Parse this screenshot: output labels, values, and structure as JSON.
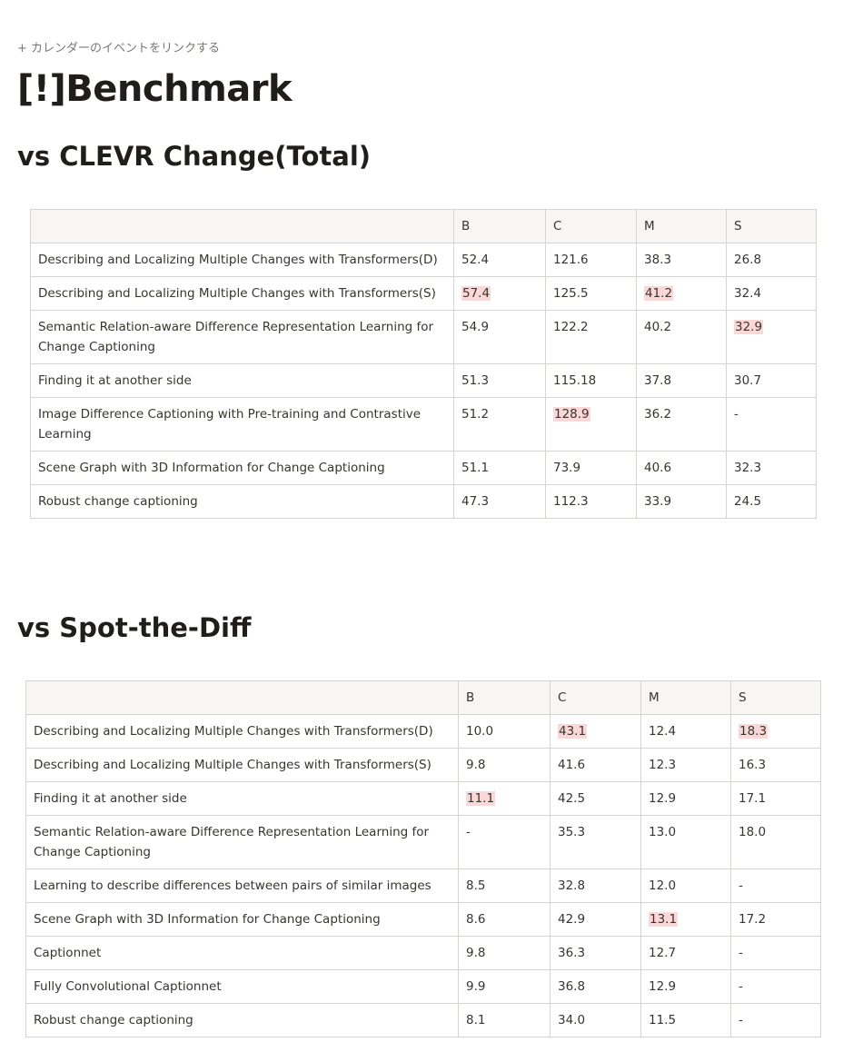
{
  "calendar_link": "+ カレンダーのイベントをリンクする",
  "page_title": "[!]Benchmark",
  "sections": [
    {
      "heading": "vs CLEVR Change(Total)",
      "columns": [
        "",
        "B",
        "C",
        "M",
        "S"
      ],
      "rows": [
        {
          "name": "Describing and Localizing Multiple Changes with Transformers(D)",
          "values": [
            "52.4",
            "121.6",
            "38.3",
            "26.8"
          ],
          "highlight": [
            false,
            false,
            false,
            false
          ]
        },
        {
          "name": "Describing and Localizing Multiple Changes with Transformers(S)",
          "values": [
            "57.4",
            "125.5",
            "41.2",
            "32.4"
          ],
          "highlight": [
            true,
            false,
            true,
            false
          ]
        },
        {
          "name": "Semantic Relation-aware Difference Representation Learning for Change Captioning",
          "values": [
            "54.9",
            "122.2",
            "40.2",
            "32.9"
          ],
          "highlight": [
            false,
            false,
            false,
            true
          ]
        },
        {
          "name": "Finding it at another side",
          "values": [
            "51.3",
            "115.18",
            "37.8",
            "30.7"
          ],
          "highlight": [
            false,
            false,
            false,
            false
          ]
        },
        {
          "name": "Image Difference Captioning with Pre-training and Contrastive Learning",
          "values": [
            "51.2",
            "128.9",
            "36.2",
            "-"
          ],
          "highlight": [
            false,
            true,
            false,
            false
          ]
        },
        {
          "name": "Scene Graph with 3D Information for Change Captioning",
          "values": [
            "51.1",
            "73.9",
            "40.6",
            "32.3"
          ],
          "highlight": [
            false,
            false,
            false,
            false
          ]
        },
        {
          "name": "Robust change captioning",
          "values": [
            "47.3",
            "112.3",
            "33.9",
            "24.5"
          ],
          "highlight": [
            false,
            false,
            false,
            false
          ]
        }
      ]
    },
    {
      "heading": "vs Spot-the-Diff",
      "columns": [
        "",
        "B",
        "C",
        "M",
        "S"
      ],
      "rows": [
        {
          "name": "Describing and Localizing Multiple Changes with Transformers(D)",
          "values": [
            "10.0",
            "43.1",
            "12.4",
            "18.3"
          ],
          "highlight": [
            false,
            true,
            false,
            true
          ]
        },
        {
          "name": "Describing and Localizing Multiple Changes with Transformers(S)",
          "values": [
            "9.8",
            "41.6",
            "12.3",
            "16.3"
          ],
          "highlight": [
            false,
            false,
            false,
            false
          ]
        },
        {
          "name": "Finding it at another side",
          "values": [
            "11.1",
            "42.5",
            "12.9",
            "17.1"
          ],
          "highlight": [
            true,
            false,
            false,
            false
          ]
        },
        {
          "name": "Semantic Relation-aware Difference Representation Learning for Change Captioning",
          "values": [
            "-",
            "35.3",
            "13.0",
            "18.0"
          ],
          "highlight": [
            false,
            false,
            false,
            false
          ]
        },
        {
          "name": "Learning to describe differences between pairs of similar images",
          "values": [
            "8.5",
            "32.8",
            "12.0",
            "-"
          ],
          "highlight": [
            false,
            false,
            false,
            false
          ]
        },
        {
          "name": "Scene Graph with 3D Information for Change Captioning",
          "values": [
            "8.6",
            "42.9",
            "13.1",
            "17.2"
          ],
          "highlight": [
            false,
            false,
            true,
            false
          ]
        },
        {
          "name": "Captionnet",
          "values": [
            "9.8",
            "36.3",
            "12.7",
            "-"
          ],
          "highlight": [
            false,
            false,
            false,
            false
          ]
        },
        {
          "name": "Fully Convolutional Captionnet",
          "values": [
            "9.9",
            "36.8",
            "12.9",
            "-"
          ],
          "highlight": [
            false,
            false,
            false,
            false
          ]
        },
        {
          "name": "Robust change captioning",
          "values": [
            "8.1",
            "34.0",
            "11.5",
            "-"
          ],
          "highlight": [
            false,
            false,
            false,
            false
          ]
        }
      ]
    }
  ],
  "colors": {
    "highlight": "#fbd7d7",
    "header_bg": "#f7f6f3",
    "border": "#d5d4d1"
  }
}
